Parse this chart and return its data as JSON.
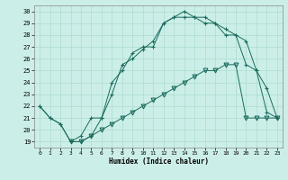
{
  "xlabel": "Humidex (Indice chaleur)",
  "background_color": "#cceee8",
  "line_color": "#1a6b5e",
  "grid_color": "#aaddcc",
  "xlim": [
    -0.5,
    23.5
  ],
  "ylim": [
    18.5,
    30.5
  ],
  "xticks": [
    0,
    1,
    2,
    3,
    4,
    5,
    6,
    7,
    8,
    9,
    10,
    11,
    12,
    13,
    14,
    15,
    16,
    17,
    18,
    19,
    20,
    21,
    22,
    23
  ],
  "yticks": [
    19,
    20,
    21,
    22,
    23,
    24,
    25,
    26,
    27,
    28,
    29,
    30
  ],
  "line1_x": [
    0,
    1,
    2,
    3,
    4,
    5,
    6,
    7,
    8,
    9,
    10,
    11,
    12,
    13,
    14,
    15,
    16,
    17,
    18,
    19,
    20,
    21,
    22,
    23
  ],
  "line1_y": [
    22.0,
    21.0,
    20.5,
    19.0,
    19.5,
    21.0,
    21.0,
    23.0,
    25.5,
    26.0,
    26.8,
    27.5,
    29.0,
    29.5,
    30.0,
    29.5,
    29.0,
    29.0,
    28.5,
    28.0,
    27.5,
    25.0,
    21.5,
    21.0
  ],
  "line2_x": [
    0,
    1,
    2,
    3,
    4,
    5,
    6,
    7,
    8,
    9,
    10,
    11,
    12,
    13,
    14,
    15,
    16,
    17,
    18,
    19,
    20,
    21,
    22,
    23
  ],
  "line2_y": [
    22.0,
    21.0,
    20.5,
    19.0,
    19.0,
    19.5,
    21.0,
    24.0,
    25.0,
    26.5,
    27.0,
    27.0,
    29.0,
    29.5,
    29.5,
    29.5,
    29.5,
    29.0,
    28.0,
    28.0,
    25.5,
    25.0,
    23.5,
    21.0
  ],
  "line3_x": [
    3,
    4,
    5,
    6,
    7,
    8,
    9,
    10,
    11,
    12,
    13,
    14,
    15,
    16,
    17,
    18,
    19,
    20,
    21,
    22,
    23
  ],
  "line3_y": [
    19.0,
    19.0,
    19.5,
    20.0,
    20.5,
    21.0,
    21.5,
    22.0,
    22.5,
    23.0,
    23.5,
    24.0,
    24.5,
    25.0,
    25.0,
    25.5,
    25.5,
    21.0,
    21.0,
    21.0,
    21.0
  ]
}
